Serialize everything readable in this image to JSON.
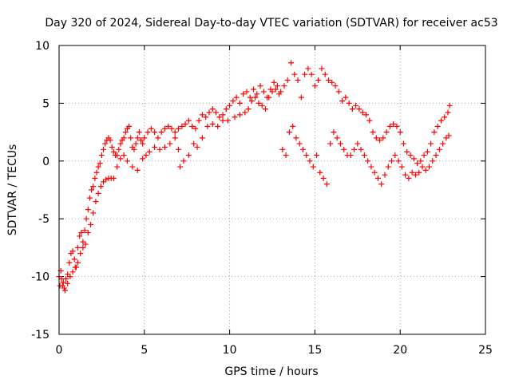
{
  "chart_data": {
    "type": "scatter",
    "title": "Day 320 of 2024, Sidereal Day-to-day VTEC variation (SDTVAR) for receiver ac53",
    "xlabel": "GPS time / hours",
    "ylabel": "SDTVAR / TECUs",
    "xlim": [
      0,
      25
    ],
    "ylim": [
      -15,
      10
    ],
    "xticks": [
      0,
      5,
      10,
      15,
      20,
      25
    ],
    "yticks": [
      -15,
      -10,
      -5,
      0,
      5,
      10
    ],
    "grid": true,
    "marker": "+",
    "series_color": "#ff0000",
    "series": [
      {
        "name": "SDTVAR",
        "x": [
          0.0,
          0.1,
          0.2,
          0.3,
          0.4,
          0.5,
          0.6,
          0.7,
          0.8,
          0.9,
          1.0,
          1.1,
          1.2,
          1.3,
          1.4,
          1.5,
          1.6,
          1.7,
          1.8,
          1.9,
          2.0,
          2.1,
          2.2,
          2.3,
          2.4,
          2.5,
          2.6,
          2.7,
          2.8,
          2.9,
          3.0,
          3.1,
          3.2,
          3.3,
          3.4,
          3.5,
          3.6,
          3.7,
          3.8,
          3.9,
          4.0,
          4.1,
          4.2,
          4.3,
          4.4,
          4.5,
          4.6,
          4.7,
          4.8,
          4.9,
          5.0,
          5.2,
          5.4,
          5.6,
          5.8,
          6.0,
          6.2,
          6.4,
          6.6,
          6.8,
          7.0,
          7.2,
          7.4,
          7.6,
          7.8,
          8.0,
          8.2,
          8.4,
          8.6,
          8.8,
          9.0,
          9.2,
          9.4,
          9.6,
          9.8,
          10.0,
          10.2,
          10.4,
          10.6,
          10.8,
          11.0,
          11.2,
          11.4,
          11.6,
          11.8,
          12.0,
          12.2,
          12.4,
          12.6,
          12.8,
          13.0,
          13.2,
          13.4,
          13.6,
          13.8,
          14.0,
          14.2,
          14.4,
          14.6,
          14.8,
          15.0,
          15.2,
          15.4,
          15.6,
          15.8,
          16.0,
          16.2,
          16.4,
          16.6,
          16.8,
          17.0,
          17.2,
          17.4,
          17.6,
          17.8,
          18.0,
          18.2,
          18.4,
          18.6,
          18.8,
          19.0,
          19.2,
          19.4,
          19.6,
          19.8,
          20.0,
          20.2,
          20.4,
          20.6,
          20.8,
          21.0,
          21.2,
          21.4,
          21.6,
          21.8,
          22.0,
          22.2,
          22.4,
          22.6,
          22.8,
          22.9,
          0.05,
          0.15,
          0.25,
          0.35,
          0.5,
          0.65,
          0.8,
          0.95,
          1.1,
          1.25,
          1.4,
          1.55,
          1.7,
          1.85,
          2.0,
          2.15,
          2.3,
          2.45,
          2.6,
          2.75,
          2.9,
          3.05,
          3.2,
          3.4,
          3.6,
          3.8,
          4.0,
          4.3,
          4.6,
          4.9,
          5.1,
          5.3,
          5.6,
          5.9,
          6.2,
          6.5,
          6.8,
          7.0,
          7.1,
          7.3,
          7.6,
          7.9,
          8.1,
          8.4,
          8.7,
          9.0,
          9.3,
          9.6,
          9.9,
          10.3,
          10.6,
          10.9,
          11.1,
          11.3,
          11.5,
          11.7,
          11.9,
          12.1,
          12.3,
          12.5,
          12.7,
          12.9,
          13.1,
          13.3,
          13.5,
          13.7,
          13.9,
          14.1,
          14.3,
          14.5,
          14.7,
          14.9,
          15.1,
          15.3,
          15.5,
          15.7,
          15.9,
          16.1,
          16.3,
          16.5,
          16.7,
          16.9,
          17.1,
          17.3,
          17.5,
          17.7,
          17.9,
          18.1,
          18.3,
          18.5,
          18.7,
          18.9,
          19.1,
          19.3,
          19.5,
          19.7,
          19.9,
          20.1,
          20.3,
          20.5,
          20.7,
          20.9,
          21.1,
          21.3,
          21.5,
          21.7,
          21.9,
          22.1,
          22.3,
          22.5,
          22.7,
          22.85
        ],
        "y": [
          -10.0,
          -9.5,
          -10.8,
          -11.0,
          -10.2,
          -9.8,
          -8.8,
          -8.0,
          -7.8,
          -8.5,
          -9.2,
          -7.5,
          -6.5,
          -6.2,
          -7.0,
          -6.0,
          -5.0,
          -4.2,
          -3.2,
          -2.5,
          -2.2,
          -1.5,
          -1.0,
          -0.5,
          -0.2,
          0.5,
          1.0,
          1.5,
          1.8,
          2.0,
          1.8,
          1.2,
          0.8,
          0.5,
          0.5,
          1.0,
          1.5,
          1.8,
          2.0,
          2.5,
          2.8,
          3.0,
          2.0,
          1.2,
          1.0,
          1.5,
          2.0,
          2.5,
          1.8,
          1.5,
          2.0,
          2.5,
          2.8,
          2.5,
          2.0,
          2.5,
          2.8,
          3.0,
          2.8,
          2.5,
          2.8,
          3.0,
          3.2,
          3.5,
          3.0,
          2.8,
          3.5,
          4.0,
          3.8,
          4.2,
          4.5,
          4.2,
          3.8,
          4.0,
          4.5,
          4.8,
          5.2,
          5.5,
          5.0,
          5.8,
          6.0,
          5.5,
          6.2,
          5.8,
          6.5,
          6.0,
          5.5,
          6.2,
          6.8,
          6.5,
          6.0,
          6.5,
          7.0,
          8.5,
          7.5,
          7.0,
          5.5,
          7.5,
          8.0,
          7.5,
          6.5,
          7.0,
          8.0,
          7.5,
          7.0,
          6.8,
          6.5,
          6.0,
          5.2,
          5.5,
          5.0,
          4.5,
          4.8,
          4.5,
          4.2,
          4.0,
          3.5,
          2.5,
          2.0,
          1.8,
          2.0,
          2.5,
          3.0,
          3.2,
          3.0,
          2.5,
          1.5,
          0.8,
          0.5,
          0.2,
          -0.2,
          0.0,
          0.5,
          0.8,
          1.5,
          2.5,
          3.0,
          3.5,
          3.8,
          4.2,
          4.8,
          -10.8,
          -10.2,
          -10.5,
          -11.2,
          -10.6,
          -10.0,
          -9.6,
          -9.2,
          -8.8,
          -8.0,
          -7.5,
          -7.2,
          -6.2,
          -5.5,
          -4.5,
          -3.5,
          -2.8,
          -2.2,
          -1.8,
          -1.6,
          -1.5,
          -1.5,
          -1.5,
          -0.5,
          0.2,
          0.5,
          0.0,
          -0.5,
          -0.8,
          0.2,
          0.5,
          0.8,
          1.2,
          1.0,
          1.2,
          1.5,
          2.0,
          1.0,
          -0.5,
          0.0,
          0.5,
          1.5,
          1.2,
          2.0,
          3.0,
          3.2,
          3.0,
          3.5,
          3.5,
          3.8,
          4.0,
          4.2,
          4.5,
          5.2,
          5.5,
          5.0,
          4.8,
          4.5,
          5.5,
          6.0,
          6.2,
          5.8,
          1.0,
          0.5,
          2.5,
          3.0,
          2.0,
          1.5,
          1.0,
          0.5,
          0.0,
          -0.5,
          0.5,
          -1.0,
          -1.5,
          -2.0,
          1.5,
          2.5,
          2.0,
          1.5,
          1.0,
          0.5,
          0.5,
          1.0,
          1.5,
          1.0,
          0.5,
          0.0,
          -0.5,
          -1.0,
          -1.5,
          -2.0,
          -1.2,
          -0.5,
          0.0,
          0.5,
          0.0,
          -0.5,
          -1.2,
          -1.5,
          -1.0,
          -1.2,
          -1.0,
          -0.5,
          -0.8,
          -0.5,
          0.0,
          0.5,
          1.0,
          1.5,
          2.0,
          2.2
        ]
      }
    ]
  }
}
